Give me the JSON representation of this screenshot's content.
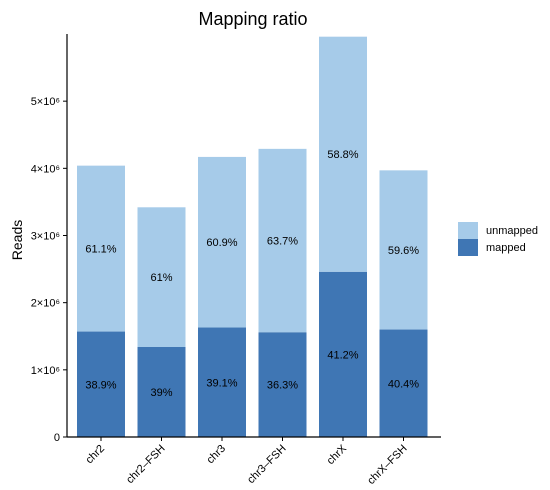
{
  "chart_data": {
    "type": "bar",
    "stacked": true,
    "title": "Mapping ratio",
    "xlabel": "",
    "ylabel": "Reads",
    "ylim": [
      0,
      6000000
    ],
    "yticks": [
      {
        "value": 0,
        "label": "0"
      },
      {
        "value": 1000000,
        "label": "1×10⁶"
      },
      {
        "value": 2000000,
        "label": "2×10⁶"
      },
      {
        "value": 3000000,
        "label": "3×10⁶"
      },
      {
        "value": 4000000,
        "label": "4×10⁶"
      },
      {
        "value": 5000000,
        "label": "5×10⁶"
      }
    ],
    "categories": [
      "chr2",
      "chr2–FSH",
      "chr3",
      "chr3–FSH",
      "chrX",
      "chrX–FSH"
    ],
    "series": [
      {
        "name": "mapped",
        "color": "#3f76b4",
        "values": [
          1570000,
          1340000,
          1630000,
          1560000,
          2460000,
          1600000
        ],
        "labels": [
          "38.9%",
          "39%",
          "39.1%",
          "36.3%",
          "41.2%",
          "40.4%"
        ]
      },
      {
        "name": "unmapped",
        "color": "#a6cbe9",
        "values": [
          2470000,
          2080000,
          2540000,
          2730000,
          3500000,
          2370000
        ],
        "labels": [
          "61.1%",
          "61%",
          "60.9%",
          "63.7%",
          "58.8%",
          "59.6%"
        ]
      }
    ],
    "legend": {
      "position": "right",
      "entries": [
        {
          "label": "unmapped",
          "color": "#a6cbe9"
        },
        {
          "label": "mapped",
          "color": "#3f76b4"
        }
      ]
    },
    "grid": false
  }
}
